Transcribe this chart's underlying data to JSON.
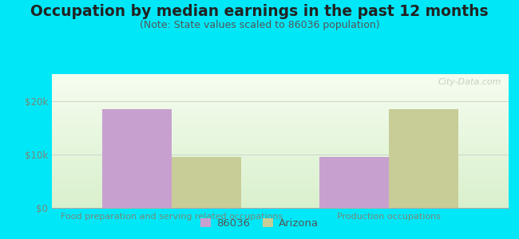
{
  "title": "Occupation by median earnings in the past 12 months",
  "subtitle": "(Note: State values scaled to 86036 population)",
  "categories": [
    "Food preparation and serving related occupations",
    "Production occupations"
  ],
  "values_86036": [
    18500,
    9500
  ],
  "values_arizona": [
    9500,
    18500
  ],
  "color_86036": "#c8a0d0",
  "color_arizona": "#c8cc96",
  "ylim": [
    0,
    25000
  ],
  "yticks": [
    0,
    10000,
    20000
  ],
  "ytick_labels": [
    "$0",
    "$10k",
    "$20k"
  ],
  "legend_labels": [
    "86036",
    "Arizona"
  ],
  "background_outer": "#00e8f8",
  "watermark": "City-Data.com",
  "bar_width": 0.32,
  "title_fontsize": 13.5,
  "subtitle_fontsize": 9,
  "title_color": "#222222",
  "subtitle_color": "#555555",
  "tick_color": "#778877",
  "axis_color": "#aaaaaa"
}
